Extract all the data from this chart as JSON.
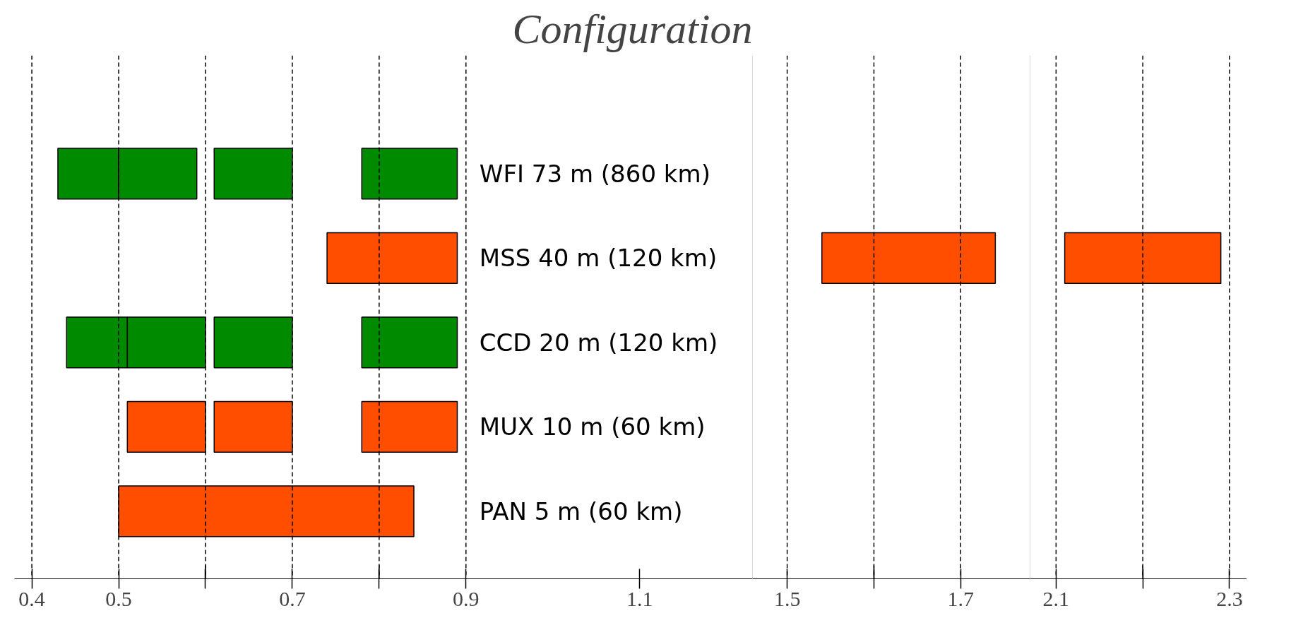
{
  "chart_data": [
    {
      "type": "bar",
      "orientation": "horizontal",
      "title": "Configuration",
      "tick_labels": "x",
      "categories": [
        "WFI 73 m (860 km)",
        "MSS 40 m (120 km)",
        "CCD 20 m (120 km)",
        "MUX 10 m (60 km)",
        "PAN 5 m (60 km)"
      ],
      "series": [
        {
          "base": [
            0.43,
            0.74,
            0.44,
            0.51,
            0.5
          ],
          "values": [
            0.07,
            0.15,
            0.07,
            0.09,
            0.34
          ],
          "colors": [
            "#008a00",
            "#ff4e00",
            "#008a00",
            "#ff4e00",
            "#ff4e00"
          ]
        },
        {
          "base": [
            0.5,
            null,
            0.51,
            0.61,
            null
          ],
          "values": [
            0.09,
            null,
            0.09,
            0.09,
            null
          ],
          "colors": [
            "#008a00",
            "#ff4e00",
            "#008a00",
            "#ff4e00",
            "#ff4e00"
          ]
        },
        {
          "base": [
            0.61,
            null,
            0.61,
            0.78,
            null
          ],
          "values": [
            0.09,
            null,
            0.09,
            0.11,
            null
          ],
          "colors": [
            "#008a00",
            "#ff4e00",
            "#008a00",
            "#ff4e00",
            "#ff4e00"
          ]
        },
        {
          "base": [
            0.78,
            null,
            0.78,
            null,
            null
          ],
          "values": [
            0.11,
            null,
            0.11,
            null,
            null
          ],
          "colors": [
            "#008a00",
            "#ff4e00",
            "#008a00",
            "#ff4e00",
            "#ff4e00"
          ]
        }
      ],
      "xlim": [
        0.38,
        1.23
      ],
      "xticks": [
        0.4,
        0.5,
        {
          "value": 0.6,
          "label": null
        },
        0.7,
        {
          "value": 0.8,
          "label": null
        },
        0.9,
        1.1
      ],
      "ref_lines": [
        {
          "axis": "x",
          "value": 0.4,
          "line_style": "dashed"
        },
        {
          "axis": "x",
          "value": 0.5,
          "line_style": "dashed"
        },
        {
          "axis": "x",
          "value": 0.6,
          "line_style": "dashed"
        },
        {
          "axis": "x",
          "value": 0.7,
          "line_style": "dashed"
        },
        {
          "axis": "x",
          "value": 0.8,
          "line_style": "dashed"
        },
        {
          "axis": "x",
          "value": 0.9,
          "line_style": "dashed"
        }
      ]
    },
    {
      "type": "bar",
      "orientation": "horizontal",
      "tick_labels": "x",
      "categories": [
        null,
        null,
        null,
        null,
        null
      ],
      "series": [
        {
          "base": [
            null,
            1.54,
            null,
            null,
            null
          ],
          "values": [
            null,
            0.2,
            null,
            null,
            null
          ],
          "colors": [
            "#ff4e00",
            "#ff4e00",
            "#ff4e00",
            "#ff4e00",
            "#ff4e00"
          ]
        }
      ],
      "xlim": [
        1.46,
        1.78
      ],
      "xticks": [
        1.5,
        {
          "value": 1.6,
          "label": null
        },
        1.7
      ],
      "ref_lines": [
        {
          "axis": "x",
          "value": 1.5,
          "line_style": "dashed"
        },
        {
          "axis": "x",
          "value": 1.6,
          "line_style": "dashed"
        },
        {
          "axis": "x",
          "value": 1.7,
          "line_style": "dashed"
        }
      ]
    },
    {
      "type": "bar",
      "orientation": "horizontal",
      "tick_labels": "x",
      "categories": [
        null,
        null,
        null,
        null,
        null
      ],
      "series": [
        {
          "base": [
            null,
            2.11,
            null,
            null,
            null
          ],
          "values": [
            null,
            0.18,
            null,
            null,
            null
          ],
          "colors": [
            "#ff4e00",
            "#ff4e00",
            "#ff4e00",
            "#ff4e00",
            "#ff4e00"
          ]
        }
      ],
      "xlim": [
        2.07,
        2.32
      ],
      "xticks": [
        2.1,
        {
          "value": 2.2,
          "label": null
        },
        2.3
      ],
      "ref_lines": [
        {
          "axis": "x",
          "value": 2.1,
          "line_style": "dashed"
        },
        {
          "axis": "x",
          "value": 2.2,
          "line_style": "dashed"
        },
        {
          "axis": "x",
          "value": 2.3,
          "line_style": "dashed"
        }
      ]
    }
  ]
}
